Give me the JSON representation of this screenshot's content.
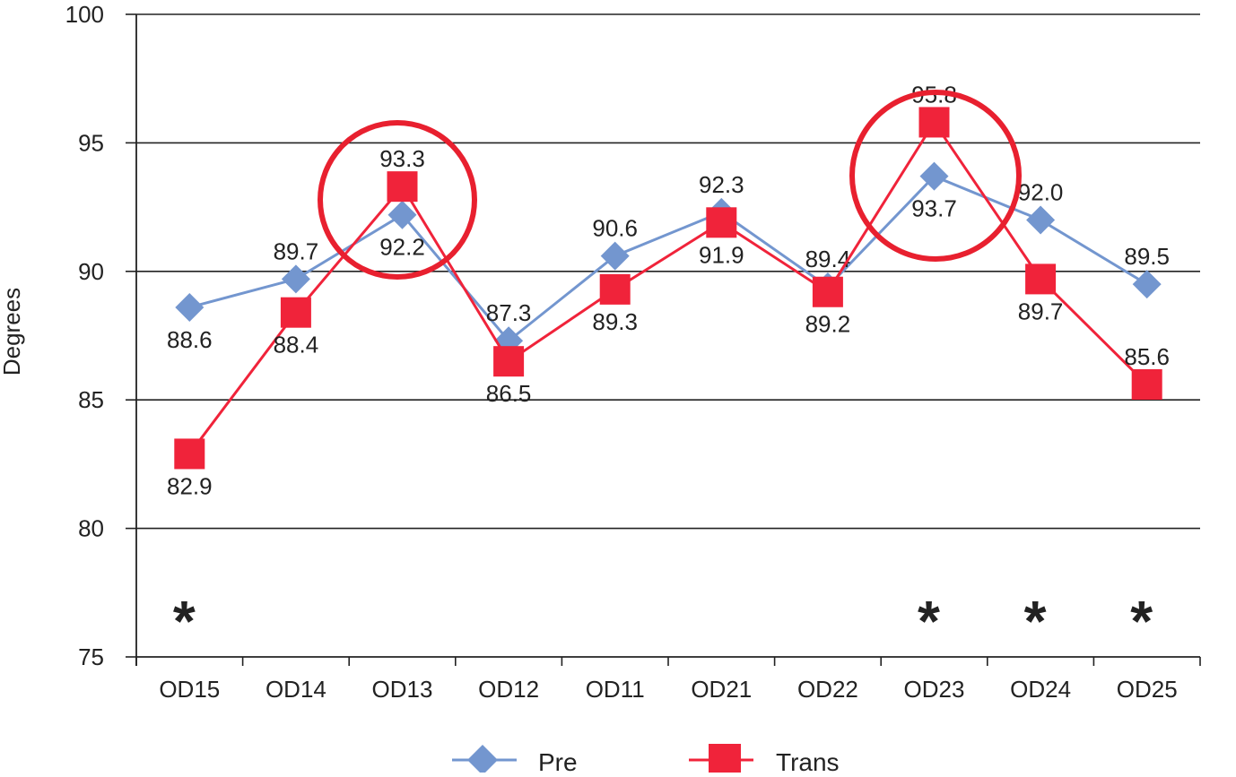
{
  "chart_data": {
    "type": "line",
    "title": "",
    "xlabel": "",
    "ylabel": "Degrees",
    "ylim": [
      75,
      100
    ],
    "yticks": [
      75,
      80,
      85,
      90,
      95,
      100
    ],
    "grid": true,
    "legend_placement": "bottom",
    "categories": [
      "OD15",
      "OD14",
      "OD13",
      "OD12",
      "OD11",
      "OD21",
      "OD22",
      "OD23",
      "OD24",
      "OD25"
    ],
    "series": [
      {
        "name": "Pre",
        "marker": "diamond",
        "color": "#7396cf",
        "values": [
          88.6,
          89.7,
          92.2,
          87.3,
          90.6,
          92.3,
          89.4,
          93.7,
          92.0,
          89.5
        ],
        "labels": [
          "88.6",
          "89.7",
          "92.2",
          "87.3",
          "90.6",
          "92.3",
          "89.4",
          "93.7",
          "92.0",
          "89.5"
        ]
      },
      {
        "name": "Trans",
        "marker": "square",
        "color": "#f0233a",
        "values": [
          82.9,
          88.4,
          93.3,
          86.5,
          89.3,
          91.9,
          89.2,
          95.8,
          89.7,
          85.6
        ],
        "labels": [
          "82.9",
          "88.4",
          "93.3",
          "86.5",
          "89.3",
          "91.9",
          "89.2",
          "95.8",
          "89.7",
          "85.6"
        ]
      }
    ],
    "annotations": {
      "circled_categories": [
        "OD13",
        "OD23"
      ],
      "circle_color": "#e8202f",
      "asterisk_categories": [
        "OD15",
        "OD23",
        "OD24",
        "OD25"
      ],
      "asterisk_symbol": "*"
    }
  }
}
